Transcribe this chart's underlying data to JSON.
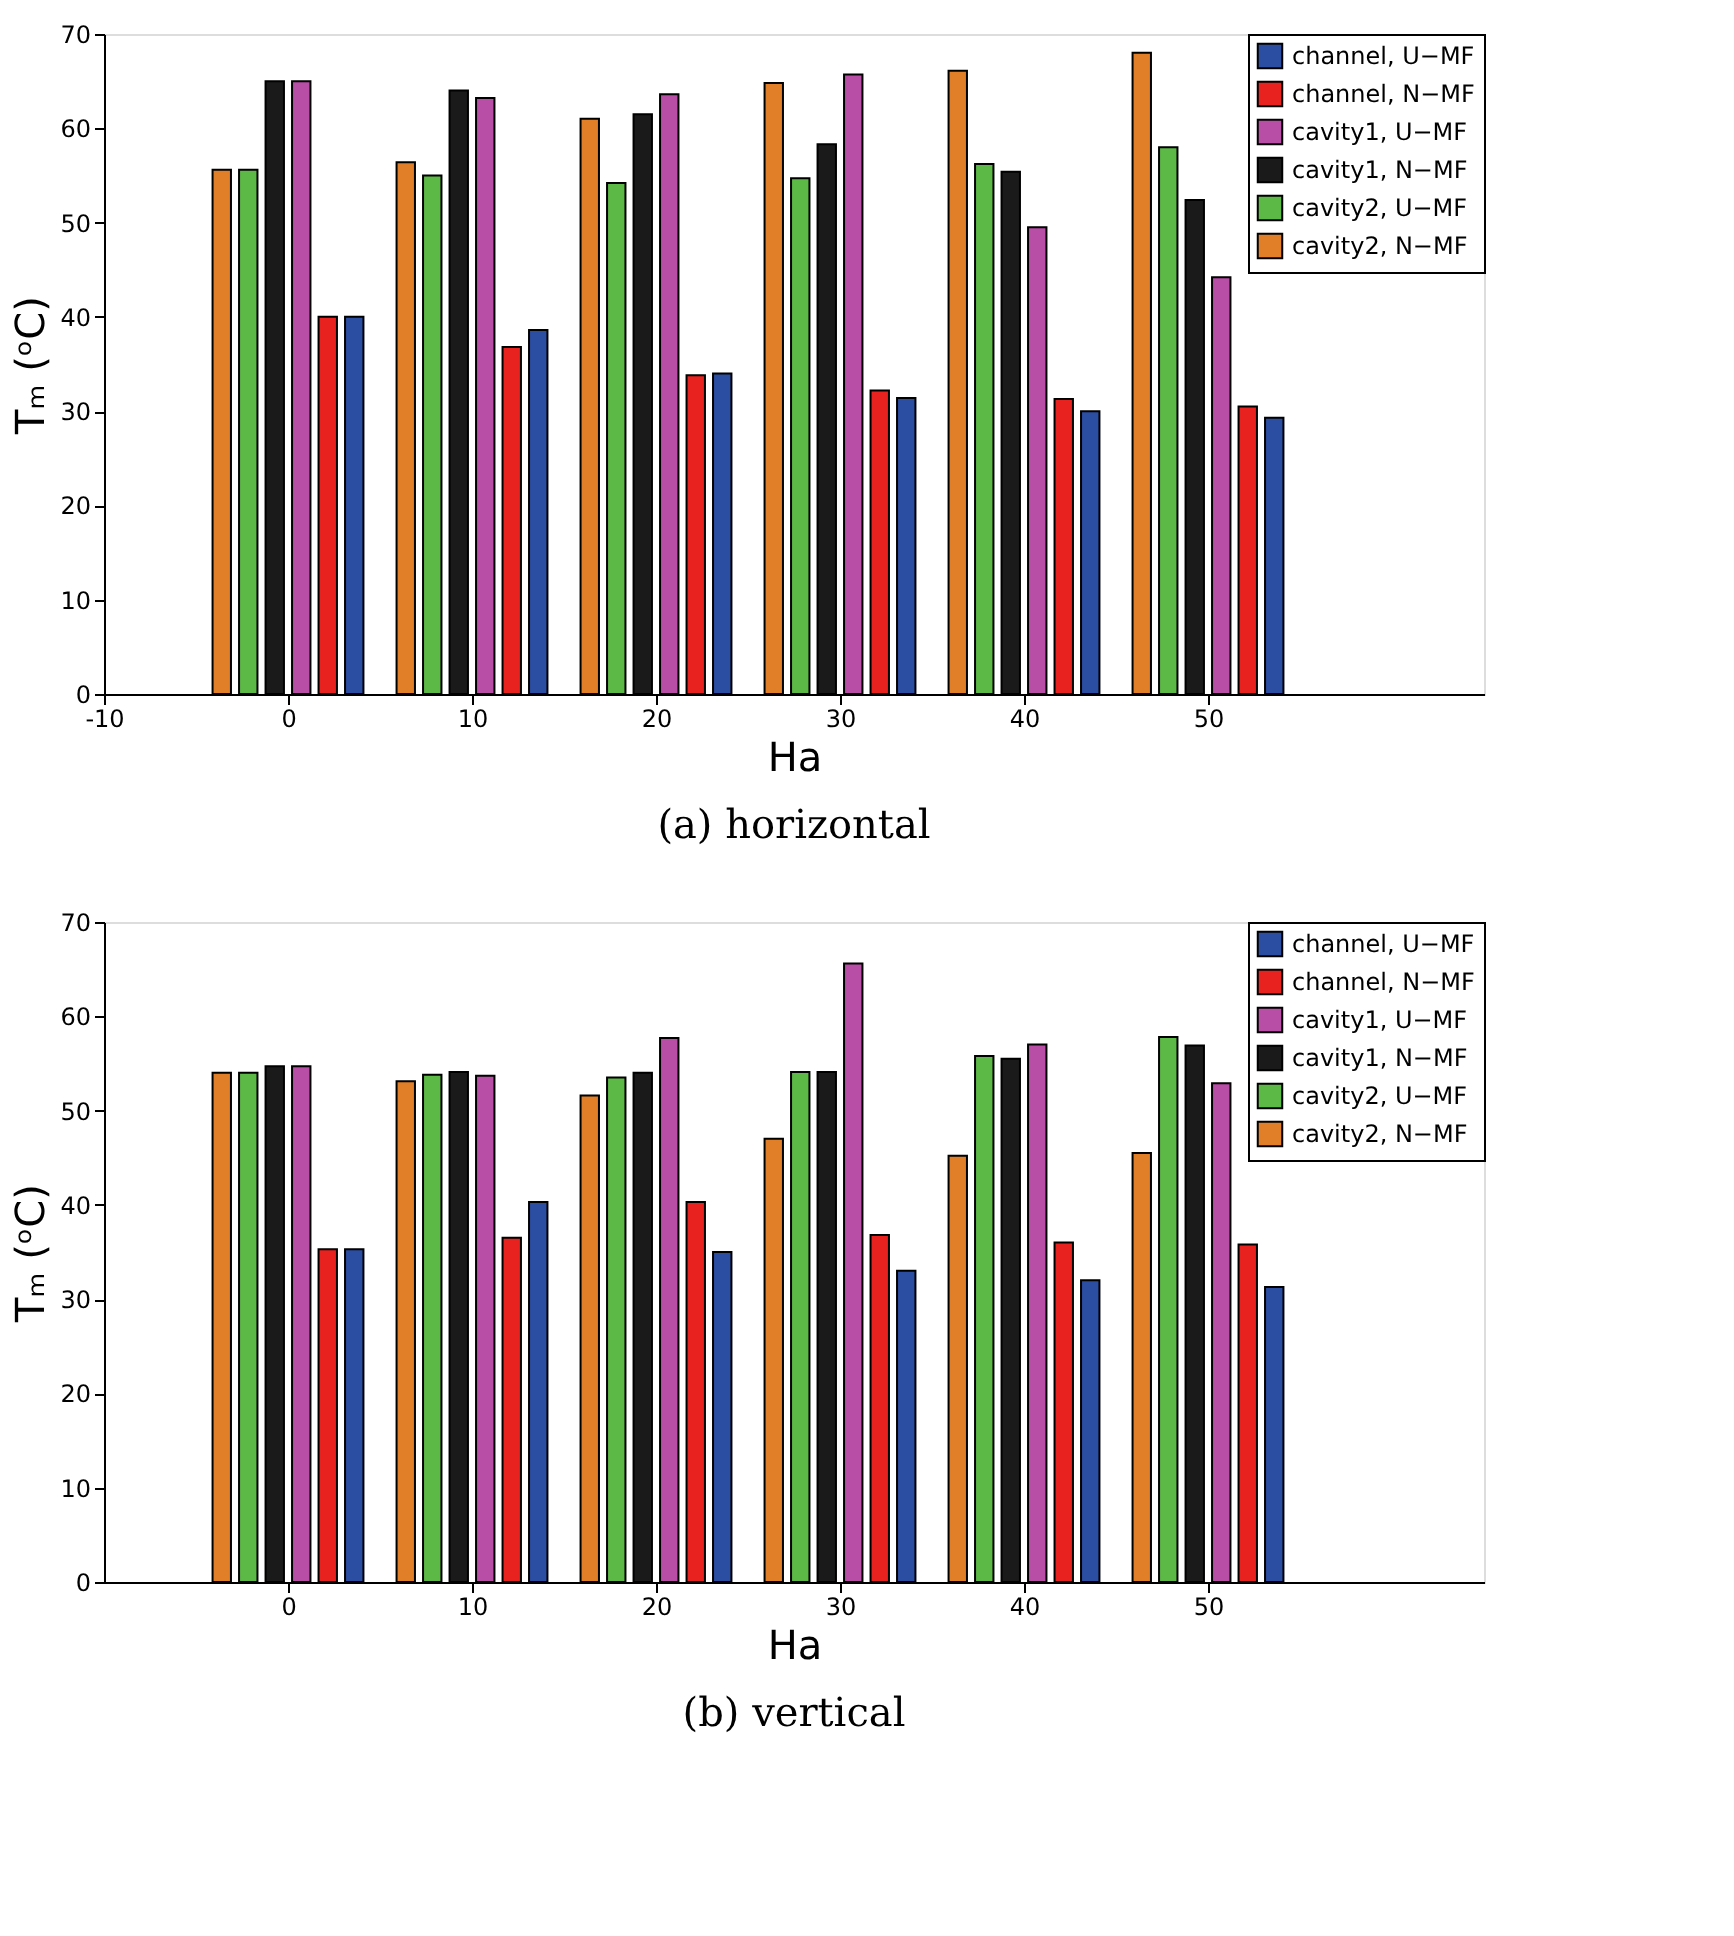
{
  "chart_data": [
    {
      "type": "bar",
      "title": "(a) horizontal",
      "xlabel": "Ha",
      "ylabel": "Tₘ (ᵒC)",
      "xlim": [
        -10,
        65
      ],
      "xticks": [
        -10,
        0,
        10,
        20,
        30,
        40,
        50
      ],
      "ylim": [
        0,
        70
      ],
      "yticks": [
        0,
        10,
        20,
        30,
        40,
        50,
        60,
        70
      ],
      "grid": false,
      "legend": "top right",
      "series": [
        {
          "name": "channel, U−MF",
          "color": "#2b4ea2",
          "x": [
            3.6,
            13.6,
            23.6,
            33.6,
            43.6,
            53.6
          ],
          "values": [
            40,
            38.6,
            34,
            31.4,
            30,
            29.3
          ]
        },
        {
          "name": "channel, N−MF",
          "color": "#e8221f",
          "x": [
            2.16,
            12.16,
            22.16,
            32.16,
            42.16,
            52.16
          ],
          "values": [
            40,
            36.8,
            33.8,
            32.2,
            31.3,
            30.5
          ]
        },
        {
          "name": "cavity1, U−MF",
          "color": "#b84ea6",
          "x": [
            0.72,
            10.72,
            20.72,
            30.72,
            40.72,
            50.72
          ],
          "values": [
            65,
            63.2,
            63.6,
            65.7,
            49.5,
            44.2
          ]
        },
        {
          "name": "cavity1, N−MF",
          "color": "#1a1a1a",
          "x": [
            -0.72,
            9.28,
            19.28,
            29.28,
            39.28,
            49.28
          ],
          "values": [
            65,
            64,
            61.5,
            58.3,
            55.4,
            52.4
          ]
        },
        {
          "name": "cavity2, U−MF",
          "color": "#5cb946",
          "x": [
            -2.16,
            7.84,
            17.84,
            27.84,
            37.84,
            47.84
          ],
          "values": [
            55.6,
            55,
            54.2,
            54.7,
            56.2,
            58
          ]
        },
        {
          "name": "cavity2, N−MF",
          "color": "#e07f27",
          "x": [
            -3.6,
            6.4,
            16.4,
            26.4,
            36.4,
            46.4
          ],
          "values": [
            55.6,
            56.4,
            61,
            64.8,
            66.1,
            68
          ]
        }
      ]
    },
    {
      "type": "bar",
      "title": "(b) vertical",
      "xlabel": "Ha",
      "ylabel": "Tₘ (ᵒC)",
      "xlim": [
        -10,
        65
      ],
      "xticks": [
        0,
        10,
        20,
        30,
        40,
        50
      ],
      "ylim": [
        0,
        70
      ],
      "yticks": [
        0,
        10,
        20,
        30,
        40,
        50,
        60,
        70
      ],
      "grid": false,
      "legend": "top right",
      "series": [
        {
          "name": "channel, U−MF",
          "color": "#2b4ea2",
          "x": [
            3.6,
            13.6,
            23.6,
            33.6,
            43.6,
            53.6
          ],
          "values": [
            35.3,
            40.3,
            35,
            33,
            32,
            31.3
          ]
        },
        {
          "name": "channel, N−MF",
          "color": "#e8221f",
          "x": [
            2.16,
            12.16,
            22.16,
            32.16,
            42.16,
            52.16
          ],
          "values": [
            35.3,
            36.5,
            40.3,
            36.8,
            36,
            35.8
          ]
        },
        {
          "name": "cavity1, U−MF",
          "color": "#b84ea6",
          "x": [
            0.72,
            10.72,
            20.72,
            30.72,
            40.72,
            50.72
          ],
          "values": [
            54.7,
            53.7,
            57.7,
            65.6,
            57,
            52.9
          ]
        },
        {
          "name": "cavity1, N−MF",
          "color": "#1a1a1a",
          "x": [
            -0.72,
            9.28,
            19.28,
            29.28,
            39.28,
            49.28
          ],
          "values": [
            54.7,
            54.1,
            54,
            54.1,
            55.5,
            56.9
          ]
        },
        {
          "name": "cavity2, U−MF",
          "color": "#5cb946",
          "x": [
            -2.16,
            7.84,
            17.84,
            27.84,
            37.84,
            47.84
          ],
          "values": [
            54,
            53.8,
            53.5,
            54.1,
            55.8,
            57.8
          ]
        },
        {
          "name": "cavity2, N−MF",
          "color": "#e07f27",
          "x": [
            -3.6,
            6.4,
            16.4,
            26.4,
            36.4,
            46.4
          ],
          "values": [
            54,
            53.1,
            51.6,
            47,
            45.2,
            45.5
          ]
        }
      ]
    }
  ]
}
